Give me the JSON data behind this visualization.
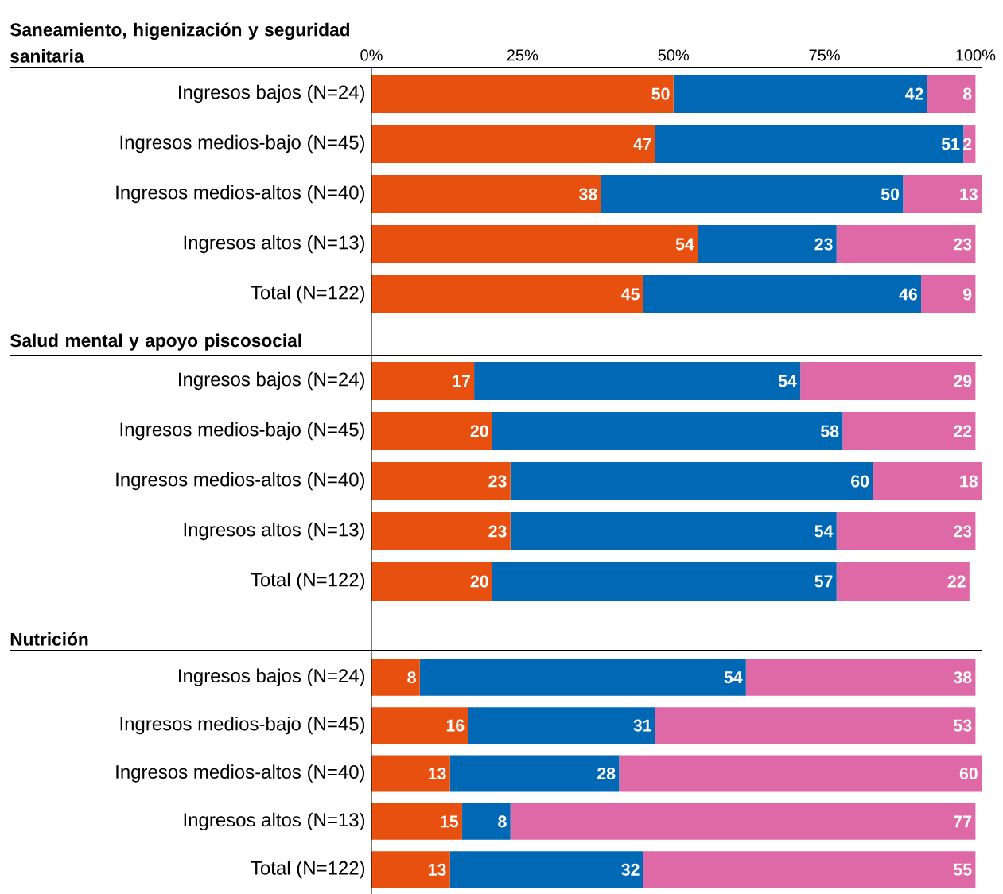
{
  "chart_data": [
    {
      "type": "bar",
      "orientation": "horizontal",
      "stacked": true,
      "data_labels": true,
      "title": "Saneamiento, higenización y seguridad sanitaria",
      "categories": [
        "Ingresos bajos (N=24)",
        "Ingresos medios-bajo (N=45)",
        "Ingresos medios-altos (N=40)",
        "Ingresos altos (N=13)",
        "Total (N=122)"
      ],
      "series": [
        {
          "color": "#e8500f",
          "values": [
            50,
            47,
            38,
            54,
            45
          ]
        },
        {
          "color": "#0068b4",
          "values": [
            42,
            51,
            50,
            23,
            46
          ]
        },
        {
          "color": "#de69a6",
          "values": [
            8,
            2,
            13,
            23,
            9
          ]
        }
      ],
      "xlim": [
        0,
        101
      ],
      "xticks": [
        {
          "value": 0,
          "label": "0%"
        },
        {
          "value": 25,
          "label": "25%"
        },
        {
          "value": 50,
          "label": "50%"
        },
        {
          "value": 75,
          "label": "75%"
        },
        {
          "value": 100,
          "label": "100%"
        }
      ]
    },
    {
      "type": "bar",
      "orientation": "horizontal",
      "stacked": true,
      "data_labels": true,
      "title": "Salud mental y apoyo piscosocial",
      "categories": [
        "Ingresos bajos (N=24)",
        "Ingresos medios-bajo (N=45)",
        "Ingresos medios-altos (N=40)",
        "Ingresos altos (N=13)",
        "Total (N=122)"
      ],
      "series": [
        {
          "color": "#e8500f",
          "values": [
            17,
            20,
            23,
            23,
            20
          ]
        },
        {
          "color": "#0068b4",
          "values": [
            54,
            58,
            60,
            54,
            57
          ]
        },
        {
          "color": "#de69a6",
          "values": [
            29,
            22,
            18,
            23,
            22
          ]
        }
      ],
      "xlim": [
        0,
        101
      ],
      "tick_labels": "y"
    },
    {
      "type": "bar",
      "orientation": "horizontal",
      "stacked": true,
      "data_labels": true,
      "title": "Nutrición",
      "categories": [
        "Ingresos bajos (N=24)",
        "Ingresos medios-bajo (N=45)",
        "Ingresos medios-altos (N=40)",
        "Ingresos altos (N=13)",
        "Total (N=122)"
      ],
      "series": [
        {
          "color": "#e8500f",
          "values": [
            8,
            16,
            13,
            15,
            13
          ]
        },
        {
          "color": "#0068b4",
          "values": [
            54,
            31,
            28,
            8,
            32
          ]
        },
        {
          "color": "#de69a6",
          "values": [
            38,
            53,
            60,
            77,
            55
          ]
        }
      ],
      "xlim": [
        0,
        101
      ],
      "tick_labels": "y"
    }
  ]
}
